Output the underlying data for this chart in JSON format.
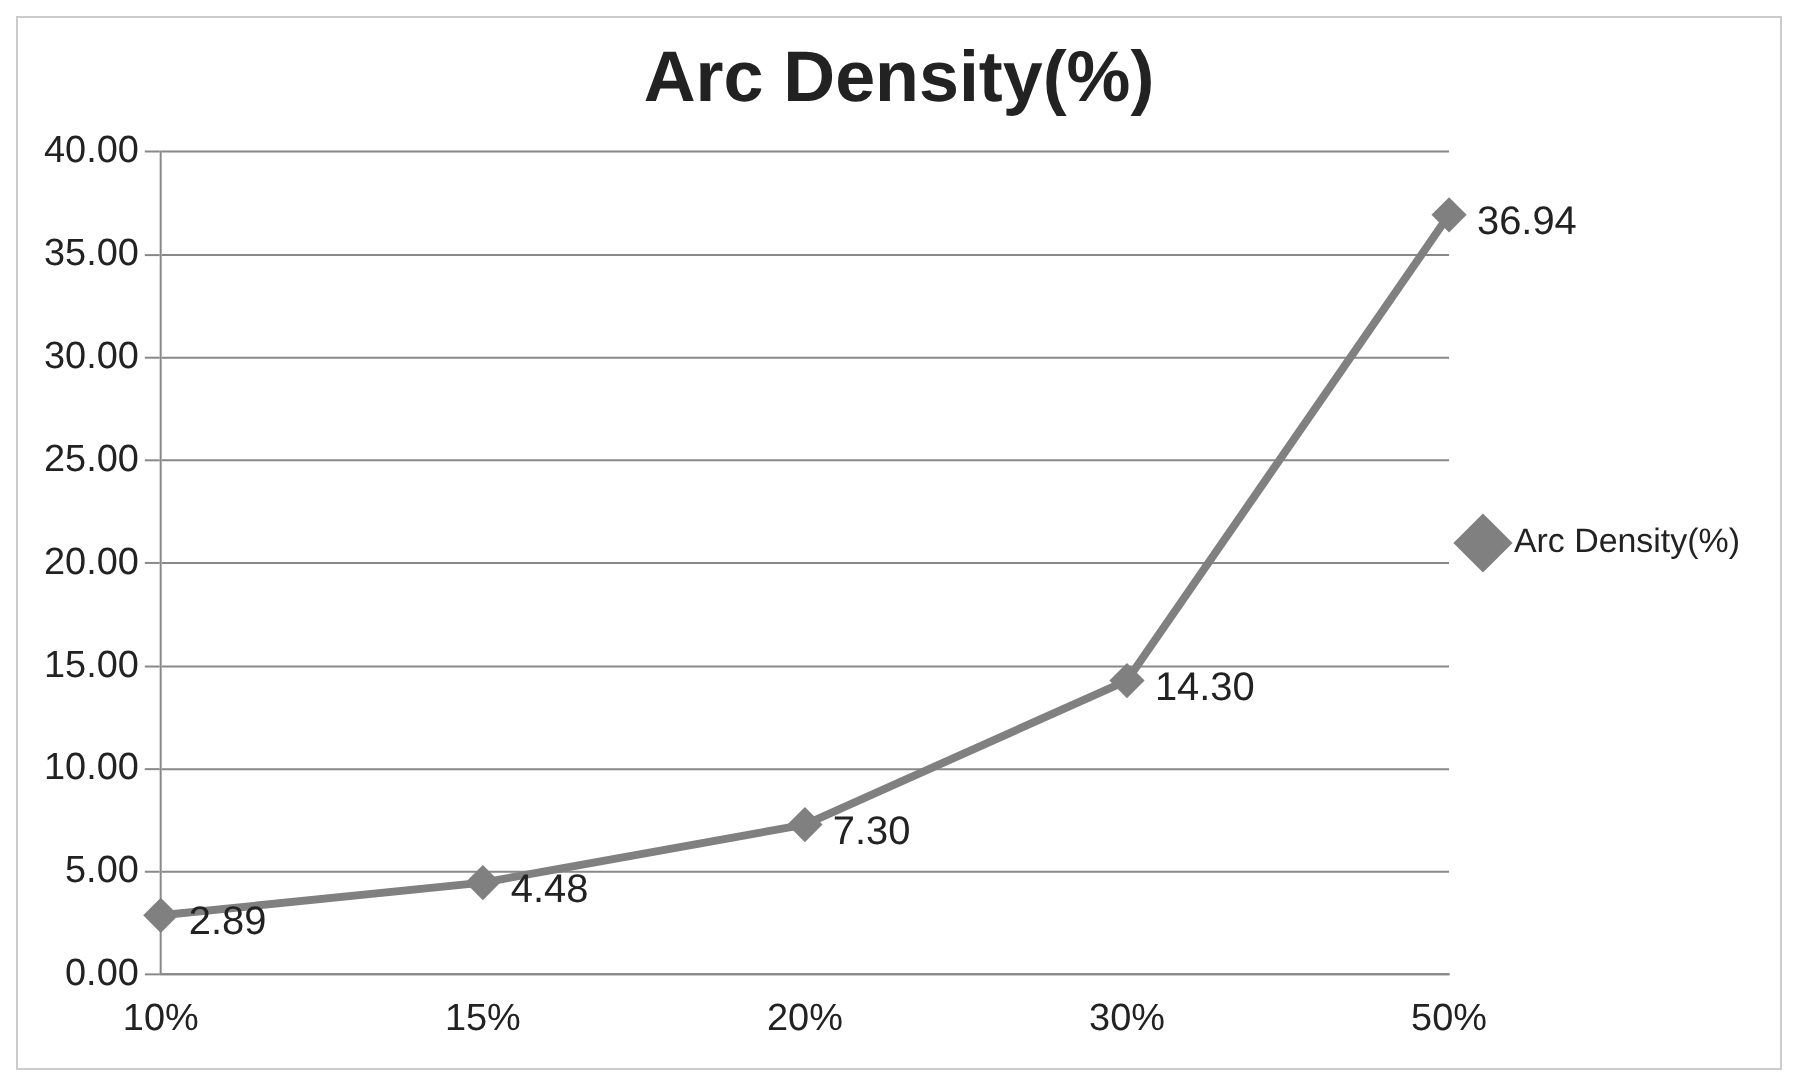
{
  "chart_data": {
    "type": "line",
    "title": "Arc Density(%)",
    "categories": [
      "10%",
      "15%",
      "20%",
      "30%",
      "50%"
    ],
    "series": [
      {
        "name": "Arc Density(%)",
        "color": "#808080",
        "values": [
          2.89,
          4.48,
          7.3,
          14.3,
          36.94
        ]
      }
    ],
    "value_labels": [
      "2.89",
      "4.48",
      "7.30",
      "14.30",
      "36.94"
    ],
    "ylim": [
      0,
      40
    ],
    "yticks": [
      {
        "value": 0,
        "label": "0.00"
      },
      {
        "value": 5,
        "label": "5.00"
      },
      {
        "value": 10,
        "label": "10.00"
      },
      {
        "value": 15,
        "label": "15.00"
      },
      {
        "value": 20,
        "label": "20.00"
      },
      {
        "value": 25,
        "label": "25.00"
      },
      {
        "value": 30,
        "label": "30.00"
      },
      {
        "value": 35,
        "label": "35.00"
      },
      {
        "value": 40,
        "label": "40.00"
      }
    ],
    "grid": "y",
    "legend": "right",
    "marker": "diamond",
    "line_style": "solid"
  }
}
